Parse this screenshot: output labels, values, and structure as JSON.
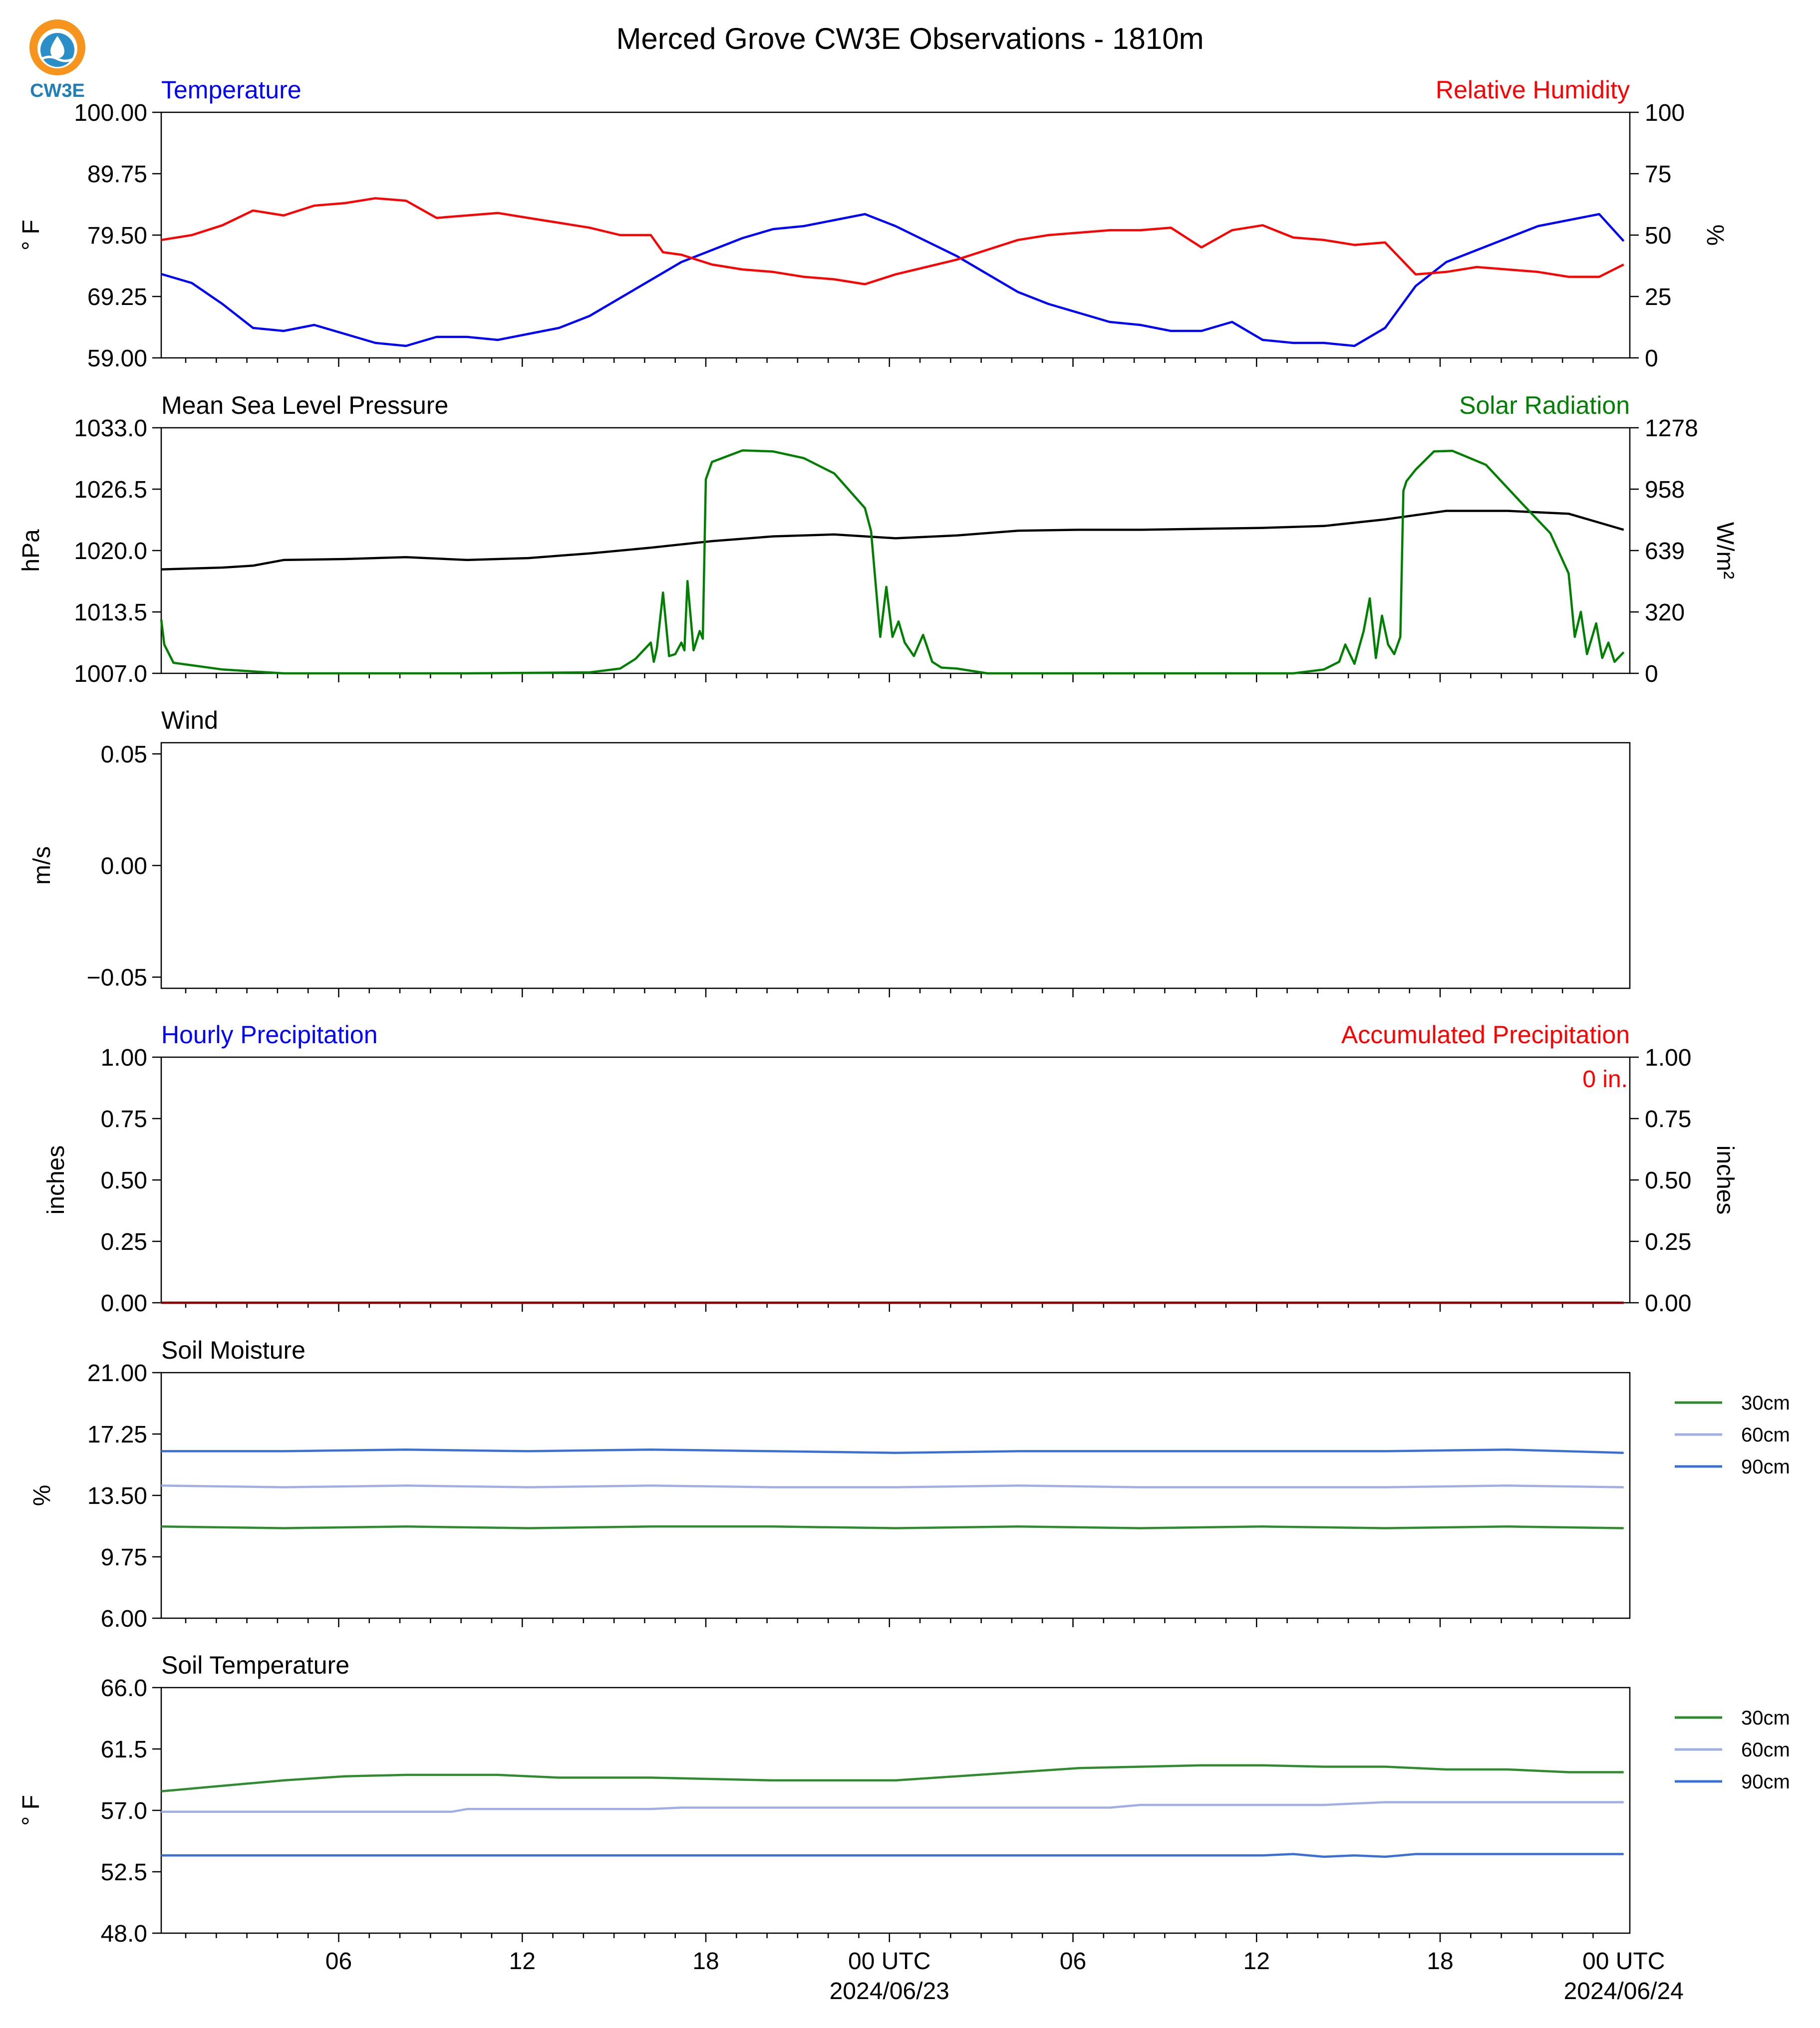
{
  "title": "Merced Grove CW3E Observations - 1810m",
  "logo": {
    "text": "CW3E",
    "colors": {
      "ring": "#f7941d",
      "drop": "#2a8fc8",
      "text": "#1f7fb8"
    }
  },
  "time_axis": {
    "hours_total": 48,
    "ticks": [
      {
        "label": "06",
        "sub": ""
      },
      {
        "label": "12",
        "sub": ""
      },
      {
        "label": "18",
        "sub": ""
      },
      {
        "label": "00 UTC",
        "sub": "2024/06/23"
      },
      {
        "label": "06",
        "sub": ""
      },
      {
        "label": "12",
        "sub": ""
      },
      {
        "label": "18",
        "sub": ""
      },
      {
        "label": "00 UTC",
        "sub": "2024/06/24"
      }
    ]
  },
  "chart_data": [
    {
      "id": "temp_rh",
      "type": "line",
      "title_left": "Temperature",
      "title_right": "Relative Humidity",
      "title_left_color": "#0000ff",
      "title_right_color": "#ff0000",
      "ylabel": "° F",
      "ylabel_right": "%",
      "ylim": [
        59.0,
        100.0
      ],
      "ylim_right": [
        0,
        100
      ],
      "yticks": [
        "100.00",
        "89.75",
        "79.50",
        "69.25",
        "59.00"
      ],
      "yticks_right": [
        "100",
        "75",
        "50",
        "25",
        "0"
      ],
      "series": [
        {
          "name": "Temperature",
          "axis": "left",
          "color": "#0000ff",
          "x": [
            0,
            1,
            2,
            3,
            4,
            5,
            6,
            7,
            8,
            9,
            10,
            11,
            12,
            13,
            14,
            15,
            16,
            17,
            18,
            19,
            20,
            21,
            22,
            23,
            24,
            25,
            26,
            27,
            28,
            29,
            30,
            31,
            32,
            33,
            34,
            35,
            36,
            37,
            38,
            39,
            40,
            41,
            42,
            43,
            44,
            45,
            46,
            47,
            47.8
          ],
          "y": [
            73,
            71.5,
            68,
            64,
            63.5,
            64.5,
            63,
            61.5,
            61,
            62.5,
            62.5,
            62,
            63,
            64,
            66,
            69,
            72,
            75,
            77,
            79,
            80.5,
            81,
            82,
            83,
            81,
            78.5,
            76,
            73,
            70,
            68,
            66.5,
            65,
            64.5,
            63.5,
            63.5,
            65,
            62,
            61.5,
            61.5,
            61,
            64,
            71,
            75,
            77,
            79,
            81,
            82,
            83,
            78.5
          ]
        },
        {
          "name": "Relative Humidity",
          "axis": "right",
          "color": "#ff0000",
          "x": [
            0,
            1,
            2,
            3,
            4,
            5,
            6,
            7,
            8,
            9,
            10,
            11,
            12,
            13,
            14,
            15,
            16,
            16.4,
            17,
            18,
            19,
            20,
            21,
            22,
            23,
            24,
            25,
            26,
            27,
            28,
            29,
            30,
            31,
            32,
            33,
            34,
            35,
            36,
            37,
            38,
            39,
            40,
            41,
            42,
            43,
            44,
            45,
            46,
            47,
            47.8
          ],
          "y": [
            48,
            50,
            54,
            60,
            58,
            62,
            63,
            65,
            64,
            57,
            58,
            59,
            57,
            55,
            53,
            50,
            50,
            43,
            42,
            38,
            36,
            35,
            33,
            32,
            30,
            34,
            37,
            40,
            44,
            48,
            50,
            51,
            52,
            52,
            53,
            45,
            52,
            54,
            49,
            48,
            46,
            47,
            34,
            35,
            37,
            36,
            35,
            33,
            33,
            38
          ]
        }
      ]
    },
    {
      "id": "pressure_solar",
      "type": "line",
      "title_left": "Mean Sea Level Pressure",
      "title_right": "Solar Radiation",
      "title_left_color": "#000000",
      "title_right_color": "#008000",
      "ylabel": "hPa",
      "ylabel_right": "W/m²",
      "ylim": [
        1007.0,
        1033.0
      ],
      "ylim_right": [
        0,
        1278
      ],
      "yticks": [
        "1033.0",
        "1026.5",
        "1020.0",
        "1013.5",
        "1007.0"
      ],
      "yticks_right": [
        "1278",
        "958",
        "639",
        "320",
        "0"
      ],
      "series": [
        {
          "name": "Mean Sea Level Pressure",
          "axis": "left",
          "color": "#000000",
          "x": [
            0,
            2,
            3,
            4,
            6,
            8,
            10,
            12,
            14,
            16,
            18,
            20,
            22,
            24,
            26,
            28,
            30,
            32,
            34,
            36,
            38,
            40,
            42,
            44,
            46,
            47.8
          ],
          "y": [
            1018,
            1018.2,
            1018.4,
            1019,
            1019.1,
            1019.3,
            1019,
            1019.2,
            1019.7,
            1020.3,
            1021,
            1021.5,
            1021.7,
            1021.3,
            1021.6,
            1022.1,
            1022.2,
            1022.2,
            1022.3,
            1022.4,
            1022.6,
            1023.3,
            1024.2,
            1024.2,
            1023.9,
            1022.2
          ]
        },
        {
          "name": "Solar Radiation",
          "axis": "right",
          "color": "#008000",
          "x": [
            0,
            0.1,
            0.4,
            2,
            4,
            10,
            14,
            15,
            15.5,
            16,
            16.1,
            16.2,
            16.4,
            16.6,
            16.8,
            17,
            17.1,
            17.2,
            17.4,
            17.6,
            17.7,
            17.8,
            18,
            19,
            20,
            21,
            22,
            23,
            23.2,
            23.5,
            23.6,
            23.7,
            23.9,
            24.1,
            24.3,
            24.6,
            24.9,
            25.2,
            25.5,
            26,
            27,
            28,
            34,
            37,
            38,
            38.5,
            38.7,
            39,
            39.3,
            39.5,
            39.7,
            39.9,
            40.1,
            40.3,
            40.5,
            40.6,
            40.7,
            41,
            41.6,
            42.2,
            43.3,
            44.5,
            45.4,
            46,
            46.2,
            46.4,
            46.6,
            46.9,
            47.1,
            47.3,
            47.5,
            47.8
          ],
          "y": [
            280,
            150,
            55,
            20,
            0,
            0,
            5,
            25,
            75,
            160,
            60,
            130,
            420,
            90,
            100,
            160,
            120,
            480,
            120,
            220,
            180,
            1010,
            1100,
            1160,
            1155,
            1120,
            1040,
            860,
            740,
            190,
            320,
            450,
            190,
            270,
            160,
            90,
            200,
            60,
            30,
            25,
            0,
            0,
            0,
            0,
            20,
            60,
            150,
            50,
            220,
            390,
            80,
            300,
            150,
            100,
            190,
            950,
            1000,
            1060,
            1155,
            1158,
            1085,
            880,
            730,
            520,
            190,
            320,
            100,
            260,
            80,
            160,
            60,
            110
          ]
        }
      ]
    },
    {
      "id": "wind",
      "type": "line",
      "title_left": "Wind",
      "title_left_color": "#000000",
      "ylabel": "m/s",
      "ylim": [
        -0.055,
        0.055
      ],
      "yticks": [
        "0.05",
        "0.00",
        "−0.05"
      ],
      "series": []
    },
    {
      "id": "precip",
      "type": "line",
      "title_left": "Hourly Precipitation",
      "title_right": "Accumulated Precipitation",
      "title_left_color": "#0000ff",
      "title_right_color": "#ff0000",
      "annotation": "0 in.",
      "annotation_color": "#ff0000",
      "ylabel": "inches",
      "ylabel_right": "inches",
      "ylim": [
        0,
        1
      ],
      "ylim_right": [
        0,
        1
      ],
      "yticks": [
        "1.00",
        "0.75",
        "0.50",
        "0.25",
        "0.00"
      ],
      "yticks_right": [
        "1.00",
        "0.75",
        "0.50",
        "0.25",
        "0.00"
      ],
      "series": [
        {
          "name": "Hourly Precipitation",
          "axis": "left",
          "color": "#0000ff",
          "x": [
            0,
            47.8
          ],
          "y": [
            0,
            0
          ]
        },
        {
          "name": "Accumulated Precipitation",
          "axis": "right",
          "color": "#8b0000",
          "x": [
            0,
            47.8
          ],
          "y": [
            0,
            0
          ]
        }
      ]
    },
    {
      "id": "soil_moisture",
      "type": "line",
      "title_left": "Soil Moisture",
      "title_left_color": "#000000",
      "ylabel": "%",
      "ylim": [
        6.0,
        21.0
      ],
      "yticks": [
        "21.00",
        "17.25",
        "13.50",
        "9.75",
        "6.00"
      ],
      "legend": [
        "30cm",
        "60cm",
        "90cm"
      ],
      "series": [
        {
          "name": "30cm",
          "axis": "left",
          "color": "#2e8b2e",
          "x": [
            0,
            4,
            8,
            12,
            16,
            20,
            24,
            28,
            32,
            36,
            40,
            44,
            47.8
          ],
          "y": [
            11.6,
            11.5,
            11.6,
            11.5,
            11.6,
            11.6,
            11.5,
            11.6,
            11.5,
            11.6,
            11.5,
            11.6,
            11.5
          ]
        },
        {
          "name": "60cm",
          "axis": "left",
          "color": "#a0aee8",
          "x": [
            0,
            4,
            8,
            12,
            16,
            20,
            24,
            28,
            32,
            36,
            40,
            44,
            47.8
          ],
          "y": [
            14.1,
            14.0,
            14.1,
            14.0,
            14.1,
            14.0,
            14.0,
            14.1,
            14.0,
            14.0,
            14.0,
            14.1,
            14.0
          ]
        },
        {
          "name": "90cm",
          "axis": "left",
          "color": "#3a6fd8",
          "x": [
            0,
            4,
            8,
            12,
            16,
            20,
            24,
            28,
            32,
            36,
            40,
            44,
            47.8
          ],
          "y": [
            16.2,
            16.2,
            16.3,
            16.2,
            16.3,
            16.2,
            16.1,
            16.2,
            16.2,
            16.2,
            16.2,
            16.3,
            16.1
          ]
        }
      ]
    },
    {
      "id": "soil_temperature",
      "type": "line",
      "title_left": "Soil Temperature",
      "title_left_color": "#000000",
      "ylabel": "° F",
      "ylim": [
        48.0,
        66.0
      ],
      "yticks": [
        "66.0",
        "61.5",
        "57.0",
        "52.5",
        "48.0"
      ],
      "legend": [
        "30cm",
        "60cm",
        "90cm"
      ],
      "series": [
        {
          "name": "30cm",
          "axis": "left",
          "color": "#2e8b2e",
          "x": [
            0,
            1,
            2,
            4,
            6,
            8,
            11,
            13,
            16,
            18,
            20,
            22,
            24,
            26,
            28,
            30,
            32,
            34,
            36,
            38,
            40,
            42,
            44,
            46,
            47.8
          ],
          "y": [
            58.4,
            58.6,
            58.8,
            59.2,
            59.5,
            59.6,
            59.6,
            59.4,
            59.4,
            59.3,
            59.2,
            59.2,
            59.2,
            59.5,
            59.8,
            60.1,
            60.2,
            60.3,
            60.3,
            60.2,
            60.2,
            60.0,
            60.0,
            59.8,
            59.8
          ]
        },
        {
          "name": "60cm",
          "axis": "left",
          "color": "#a0aee8",
          "x": [
            0,
            5,
            9.5,
            10,
            16,
            17,
            18,
            20,
            24,
            28,
            31,
            32,
            36,
            38,
            40,
            44,
            47.8
          ],
          "y": [
            56.9,
            56.9,
            56.9,
            57.1,
            57.1,
            57.2,
            57.2,
            57.2,
            57.2,
            57.2,
            57.2,
            57.4,
            57.4,
            57.4,
            57.6,
            57.6,
            57.6
          ]
        },
        {
          "name": "90cm",
          "axis": "left",
          "color": "#3a6fd8",
          "x": [
            0,
            10,
            20,
            30,
            36,
            37,
            38,
            39,
            40,
            41,
            42,
            44,
            47.8
          ],
          "y": [
            53.7,
            53.7,
            53.7,
            53.7,
            53.7,
            53.8,
            53.6,
            53.7,
            53.6,
            53.8,
            53.8,
            53.8,
            53.8
          ]
        }
      ]
    }
  ]
}
